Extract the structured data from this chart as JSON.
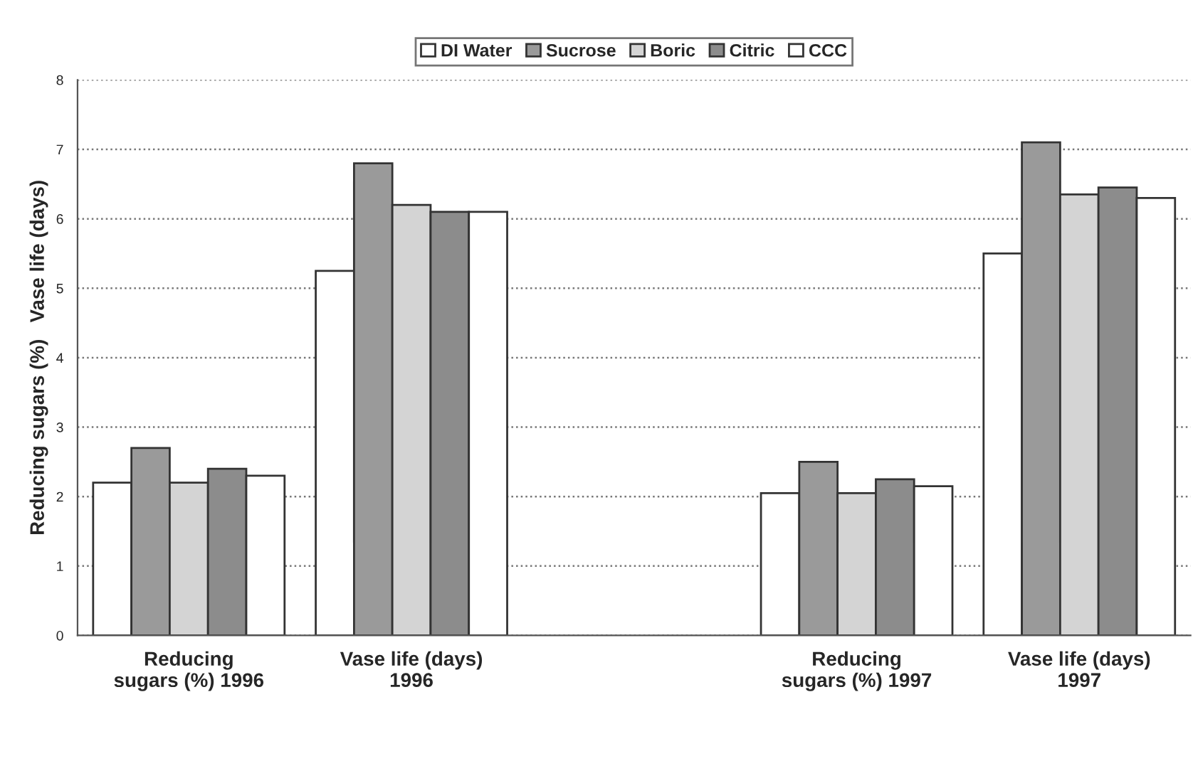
{
  "chart_data": {
    "type": "bar",
    "ylabel": "Reducing sugars (%)   Vase life (days)",
    "categories": [
      "Reducing\nsugars (%) 1996",
      "Vase life (days)\n1996",
      null,
      "Reducing\nsugars (%) 1997",
      "Vase life (days)\n1997"
    ],
    "series": [
      {
        "name": "DI Water",
        "color": "#ffffff",
        "values": [
          2.2,
          5.25,
          null,
          2.05,
          5.5
        ]
      },
      {
        "name": "Sucrose",
        "color": "#9a9a9a",
        "values": [
          2.7,
          6.8,
          null,
          2.5,
          7.1
        ]
      },
      {
        "name": "Boric",
        "color": "#d4d4d4",
        "values": [
          2.2,
          6.2,
          null,
          2.05,
          6.35
        ]
      },
      {
        "name": "Citric",
        "color": "#8c8c8c",
        "values": [
          2.4,
          6.1,
          null,
          2.25,
          6.45
        ]
      },
      {
        "name": "CCC",
        "color": "#ffffff",
        "values": [
          2.3,
          6.1,
          null,
          2.15,
          6.3
        ]
      }
    ],
    "ylim": [
      0,
      8
    ],
    "yticks": [
      0,
      1,
      2,
      3,
      4,
      5,
      6,
      7,
      8
    ],
    "grid": "y",
    "legend": "top"
  }
}
